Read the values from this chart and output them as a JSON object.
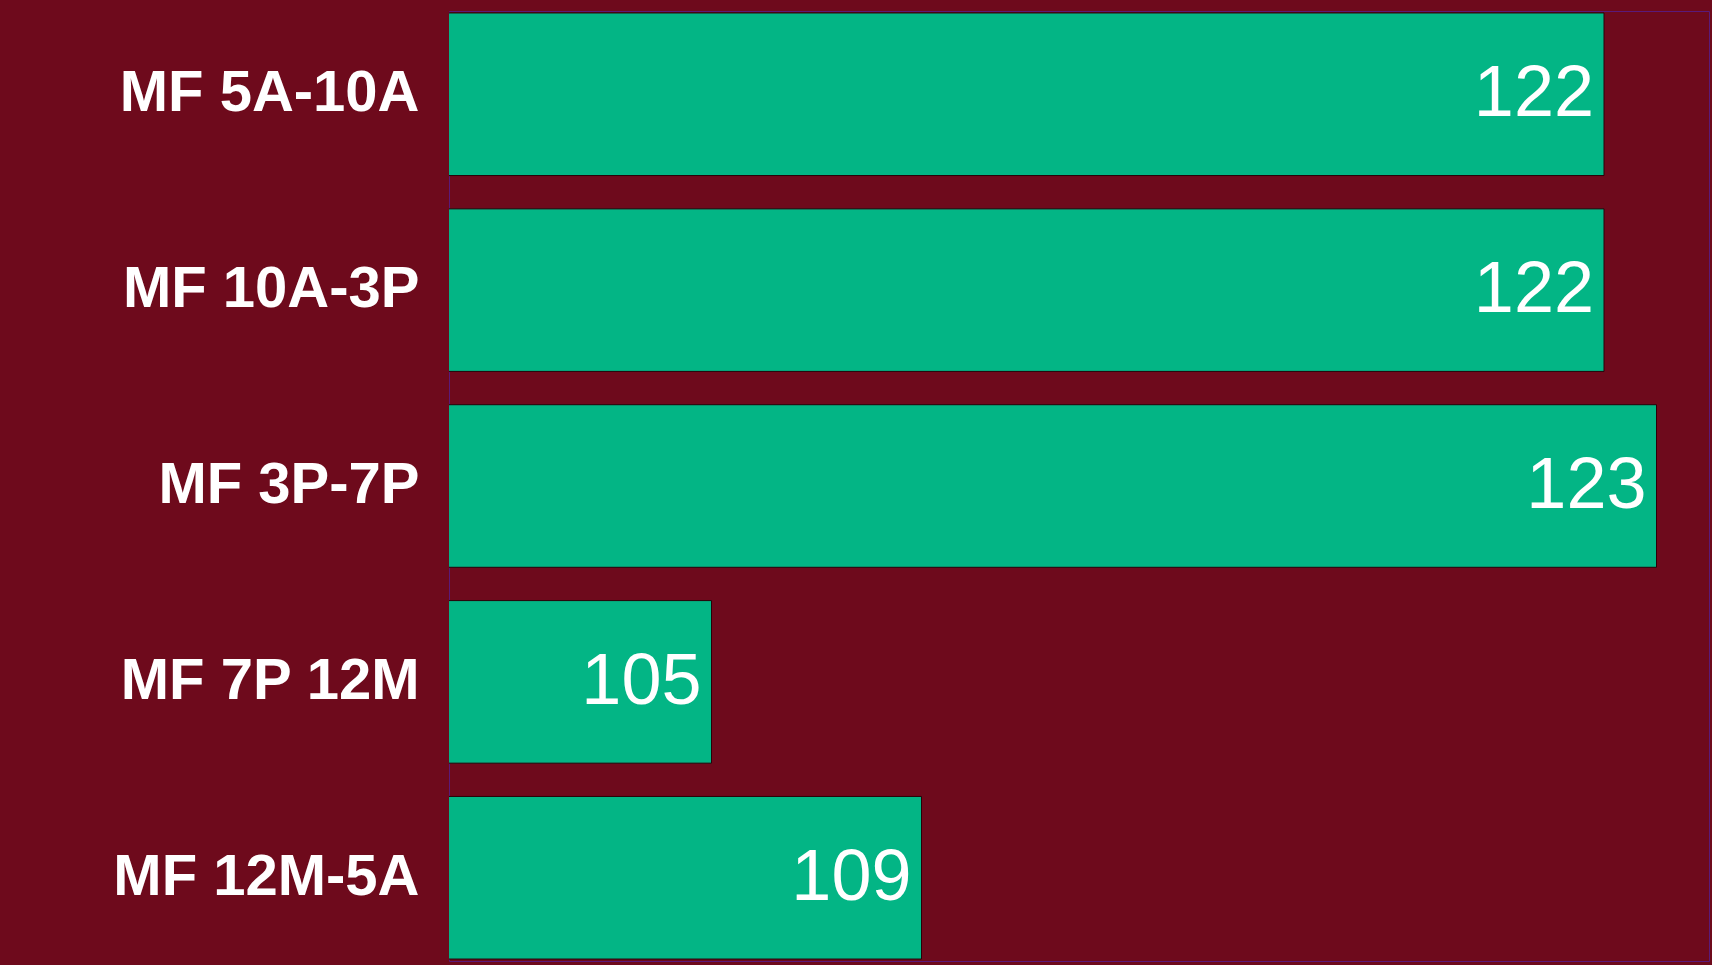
{
  "chart_data": {
    "type": "bar",
    "orientation": "horizontal",
    "categories": [
      "MF 5A-10A",
      "MF 10A-3P",
      "MF 3P-7P",
      "MF 7P 12M",
      "MF 12M-5A"
    ],
    "values": [
      122,
      122,
      123,
      105,
      109
    ],
    "data_labels": true,
    "xlim": [
      100,
      124
    ],
    "color": "#03b585"
  }
}
